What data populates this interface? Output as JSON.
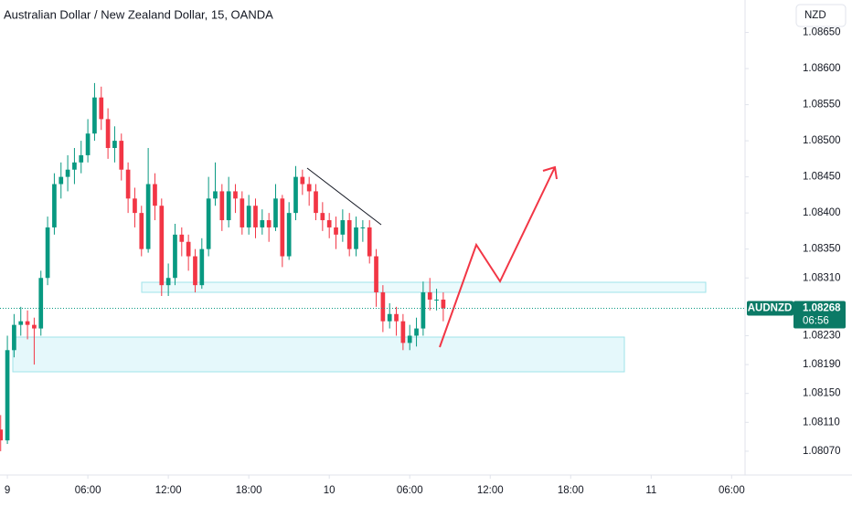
{
  "chart_data": {
    "type": "candlestick",
    "title": "Australian Dollar / New Zealand Dollar, 15, OANDA",
    "currency": "NZD",
    "symbol": "AUDNZD",
    "last_price": 1.08268,
    "countdown": "06:56",
    "up_color": "#089981",
    "down_color": "#f23645",
    "grid": false,
    "x": [
      -0.5,
      0,
      0.5,
      1,
      1.5,
      2,
      2.5,
      3,
      3.5,
      4,
      4.5,
      5,
      5.5,
      6,
      6.5,
      7,
      7.5,
      8,
      8.5,
      9,
      9.5,
      10,
      10.5,
      11,
      11.5,
      12,
      12.5,
      13,
      13.5,
      14,
      14.5,
      15,
      15.5,
      16,
      16.5,
      17,
      17.5,
      18,
      18.5,
      19,
      19.5,
      20,
      20.5,
      21,
      21.5,
      22,
      22.5,
      23,
      23.5,
      24,
      24.5,
      25,
      25.5,
      26,
      26.5,
      27,
      27.5,
      28,
      28.5,
      29,
      29.5,
      30,
      30.5,
      31,
      31.5,
      32,
      32.5
    ],
    "open": [
      1.081,
      1.08085,
      1.0821,
      1.08245,
      1.0825,
      1.08245,
      1.0824,
      1.0831,
      1.0838,
      1.0844,
      1.0845,
      1.0846,
      1.0847,
      1.0848,
      1.0851,
      1.0856,
      1.0853,
      1.0849,
      1.085,
      1.0846,
      1.0842,
      1.084,
      1.0835,
      1.0844,
      1.0841,
      1.083,
      1.0831,
      1.0837,
      1.0836,
      1.0834,
      1.083,
      1.0835,
      1.0842,
      1.0843,
      1.0839,
      1.0843,
      1.0842,
      1.0838,
      1.0841,
      1.0838,
      1.0839,
      1.0838,
      1.0842,
      1.0834,
      1.084,
      1.0845,
      1.0844,
      1.0843,
      1.084,
      1.0839,
      1.0838,
      1.0837,
      1.0839,
      1.0835,
      1.0838,
      1.0838,
      1.0834,
      1.0829,
      1.0825,
      1.0826,
      1.0825,
      1.0822,
      1.0823,
      1.0824,
      1.0829,
      1.0828,
      1.0828
    ],
    "high": [
      1.0812,
      1.0823,
      1.0826,
      1.0827,
      1.08265,
      1.08255,
      1.0832,
      1.08395,
      1.08455,
      1.0847,
      1.0848,
      1.0849,
      1.085,
      1.0853,
      1.0858,
      1.08575,
      1.08545,
      1.0852,
      1.0851,
      1.0847,
      1.08435,
      1.0841,
      1.0849,
      1.08455,
      1.0842,
      1.0833,
      1.08385,
      1.0838,
      1.0837,
      1.0835,
      1.08365,
      1.0845,
      1.0847,
      1.0844,
      1.0845,
      1.0844,
      1.0843,
      1.08425,
      1.0842,
      1.08405,
      1.084,
      1.0844,
      1.08425,
      1.08415,
      1.08465,
      1.0846,
      1.0845,
      1.0844,
      1.08415,
      1.084,
      1.08395,
      1.08405,
      1.084,
      1.08395,
      1.0839,
      1.0839,
      1.0835,
      1.083,
      1.08275,
      1.0827,
      1.0826,
      1.08245,
      1.08255,
      1.08305,
      1.0831,
      1.08295,
      1.0829
    ],
    "low": [
      1.0807,
      1.0808,
      1.082,
      1.0823,
      1.08225,
      1.0819,
      1.0823,
      1.083,
      1.0837,
      1.0842,
      1.0843,
      1.0844,
      1.08455,
      1.0847,
      1.085,
      1.08515,
      1.08475,
      1.0847,
      1.08445,
      1.084,
      1.0838,
      1.0834,
      1.08345,
      1.0839,
      1.08285,
      1.08285,
      1.083,
      1.0834,
      1.0832,
      1.0829,
      1.08295,
      1.0834,
      1.0841,
      1.08375,
      1.0838,
      1.084,
      1.0837,
      1.0837,
      1.08365,
      1.0837,
      1.0836,
      1.08375,
      1.08325,
      1.08335,
      1.0839,
      1.08425,
      1.0841,
      1.0839,
      1.08375,
      1.08365,
      1.0835,
      1.0836,
      1.0834,
      1.0834,
      1.0836,
      1.0833,
      1.0827,
      1.08235,
      1.0824,
      1.0823,
      1.0821,
      1.0821,
      1.08215,
      1.0823,
      1.08265,
      1.08265,
      1.0825
    ],
    "close": [
      1.08085,
      1.0821,
      1.08245,
      1.0825,
      1.08245,
      1.0824,
      1.0831,
      1.0838,
      1.0844,
      1.0845,
      1.0846,
      1.0847,
      1.0848,
      1.0851,
      1.0856,
      1.0853,
      1.0849,
      1.085,
      1.0846,
      1.0842,
      1.084,
      1.0835,
      1.0844,
      1.0841,
      1.083,
      1.0831,
      1.0837,
      1.0836,
      1.0834,
      1.083,
      1.0835,
      1.0842,
      1.0843,
      1.0839,
      1.0843,
      1.0842,
      1.0838,
      1.0841,
      1.0838,
      1.0839,
      1.0838,
      1.0842,
      1.0834,
      1.084,
      1.0845,
      1.0844,
      1.0843,
      1.084,
      1.0839,
      1.0838,
      1.0837,
      1.0839,
      1.0835,
      1.0838,
      1.0838,
      1.0834,
      1.0829,
      1.0825,
      1.0826,
      1.0825,
      1.0822,
      1.0823,
      1.0824,
      1.0829,
      1.0828,
      1.0828,
      1.08268
    ],
    "xlim": [
      -0.55,
      55
    ],
    "xticks": [
      {
        "value": 0,
        "label": "9"
      },
      {
        "value": 6,
        "label": "06:00"
      },
      {
        "value": 12,
        "label": "12:00"
      },
      {
        "value": 18,
        "label": "18:00"
      },
      {
        "value": 24,
        "label": "10"
      },
      {
        "value": 30,
        "label": "06:00"
      },
      {
        "value": 36,
        "label": "12:00"
      },
      {
        "value": 42,
        "label": "18:00"
      },
      {
        "value": 48,
        "label": "11"
      },
      {
        "value": 54,
        "label": "06:00"
      }
    ],
    "ylim": [
      1.08037,
      1.08695
    ],
    "yticks": [
      {
        "value": 1.0865,
        "label": "1.08650"
      },
      {
        "value": 1.086,
        "label": "1.08600"
      },
      {
        "value": 1.0855,
        "label": "1.08550"
      },
      {
        "value": 1.085,
        "label": "1.08500"
      },
      {
        "value": 1.0845,
        "label": "1.08450"
      },
      {
        "value": 1.084,
        "label": "1.08400"
      },
      {
        "value": 1.0835,
        "label": "1.08350"
      },
      {
        "value": 1.0831,
        "label": "1.08310"
      },
      {
        "value": 1.0823,
        "label": "1.08230"
      },
      {
        "value": 1.0819,
        "label": "1.08190"
      },
      {
        "value": 1.0815,
        "label": "1.08150"
      },
      {
        "value": 1.0811,
        "label": "1.08110"
      },
      {
        "value": 1.0807,
        "label": "1.08070"
      }
    ]
  }
}
